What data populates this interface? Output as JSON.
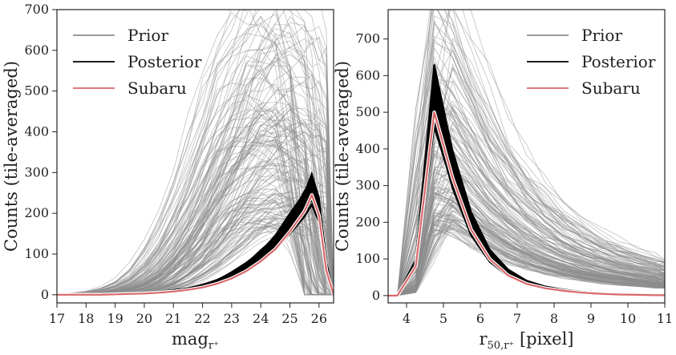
{
  "colors": {
    "prior": "#8c8c8c",
    "posterior": "#000000",
    "subaru": "#d9686a",
    "axis": "#222222"
  },
  "chart_data": [
    {
      "type": "line",
      "xlabel_main": "mag",
      "xlabel_sub": "r⁺",
      "ylabel": "Counts (tile-averaged)",
      "xlim": [
        17,
        26.5
      ],
      "ylim": [
        -20,
        700
      ],
      "xticks": [
        17,
        18,
        19,
        20,
        21,
        22,
        23,
        24,
        25,
        26
      ],
      "yticks": [
        0,
        100,
        200,
        300,
        400,
        500,
        600,
        700
      ],
      "legend": {
        "position": "top-left",
        "entries": [
          "Prior",
          "Posterior",
          "Subaru"
        ]
      },
      "x": [
        17,
        17.5,
        18,
        18.5,
        19,
        19.5,
        20,
        20.5,
        21,
        21.5,
        22,
        22.5,
        23,
        23.5,
        24,
        24.5,
        25,
        25.5,
        25.75,
        26,
        26.25,
        26.5
      ],
      "series": [
        {
          "name": "Subaru",
          "values": [
            0,
            0,
            0,
            0,
            1,
            2,
            3,
            5,
            8,
            12,
            18,
            27,
            40,
            58,
            82,
            112,
            155,
            205,
            245,
            195,
            60,
            0
          ]
        },
        {
          "name": "Posterior",
          "values": [
            0,
            0,
            0,
            0,
            1,
            2,
            4,
            6,
            10,
            14,
            22,
            32,
            48,
            68,
            95,
            128,
            175,
            225,
            262,
            210,
            70,
            0
          ]
        },
        {
          "name": "Prior",
          "values": [
            0,
            0,
            1,
            2,
            4,
            9,
            18,
            35,
            62,
            100,
            150,
            205,
            265,
            310,
            340,
            350,
            345,
            320,
            295,
            180,
            60,
            0
          ]
        }
      ]
    },
    {
      "type": "line",
      "xlabel_main": "r",
      "xlabel_sub": "50,r⁺",
      "xlabel_tail": " [pixel]",
      "ylabel": "Counts (tile-averaged)",
      "xlim": [
        3.5,
        11
      ],
      "ylim": [
        -20,
        780
      ],
      "xticks": [
        4,
        5,
        6,
        7,
        8,
        9,
        10,
        11
      ],
      "yticks": [
        0,
        100,
        200,
        300,
        400,
        500,
        600,
        700
      ],
      "legend": {
        "position": "top-right",
        "entries": [
          "Prior",
          "Posterior",
          "Subaru"
        ]
      },
      "x": [
        3.5,
        3.75,
        4.25,
        4.75,
        5.25,
        5.75,
        6.25,
        6.75,
        7.25,
        7.75,
        8.25,
        8.75,
        9.25,
        9.75,
        10.25,
        10.75,
        11
      ],
      "series": [
        {
          "name": "Subaru",
          "values": [
            0,
            0,
            80,
            500,
            320,
            180,
            100,
            55,
            32,
            20,
            13,
            8,
            5,
            3,
            2,
            1,
            1
          ]
        },
        {
          "name": "Posterior",
          "values": [
            0,
            0,
            85,
            540,
            340,
            195,
            110,
            62,
            36,
            22,
            14,
            9,
            6,
            4,
            3,
            2,
            1
          ]
        },
        {
          "name": "Prior",
          "values": [
            0,
            0,
            40,
            420,
            390,
            320,
            260,
            210,
            170,
            140,
            115,
            95,
            80,
            68,
            58,
            50,
            45
          ]
        }
      ]
    }
  ]
}
